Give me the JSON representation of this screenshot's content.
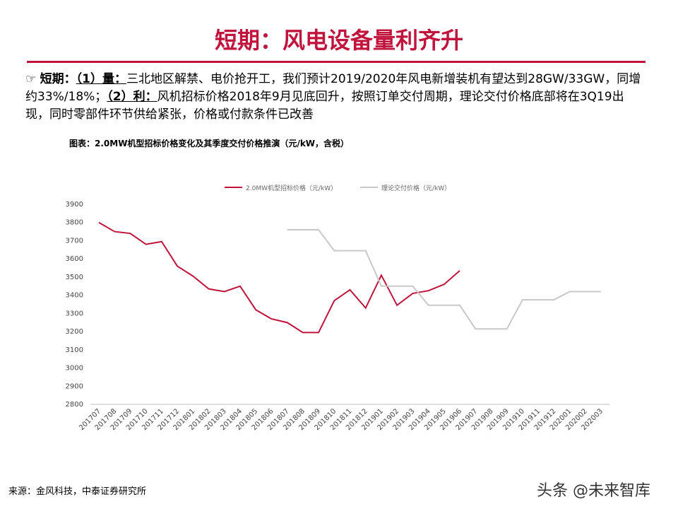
{
  "header": {
    "title": "短期：风电设备量利齐升"
  },
  "bullet": {
    "parts": [
      "短期：",
      "（1）量：",
      "三北地区解禁、电价抢开工，我们预计2019/2020年风电新增装机有望达到28GW/33GW，同增约33%/18%；",
      "（2）利：",
      "风机招标价格2018年9月见底回升，按照订单交付周期，理论交付价格底部将在3Q19出现，同时零部件环节供给紧张，价格或付款条件已改善"
    ]
  },
  "chart_data": {
    "type": "line",
    "title": "图表：2.0MW机型招标价格变化及其季度交付价格推演（元/kW，含税）",
    "categories": [
      "201707",
      "201708",
      "201709",
      "201710",
      "201711",
      "201712",
      "201801",
      "201802",
      "201803",
      "201804",
      "201805",
      "201806",
      "201807",
      "201808",
      "201809",
      "201810",
      "201811",
      "201812",
      "201901",
      "201902",
      "201903",
      "201904",
      "201905",
      "201906",
      "201907",
      "201908",
      "201909",
      "201910",
      "201911",
      "201912",
      "202001",
      "202002",
      "202003"
    ],
    "series": [
      {
        "name": "2.0MW机型招标价格（元/kW）",
        "color": "#c0143c",
        "values": [
          3800,
          3750,
          3740,
          3680,
          3695,
          3560,
          3505,
          3435,
          3420,
          3450,
          3320,
          3270,
          3250,
          3195,
          3195,
          3370,
          3430,
          3330,
          3510,
          3345,
          3410,
          3425,
          3460,
          3535,
          null,
          null,
          null,
          null,
          null,
          null,
          null,
          null,
          null
        ]
      },
      {
        "name": "理论交付价格（元/kW）",
        "color": "#c8c8c8",
        "values": [
          null,
          null,
          null,
          null,
          null,
          null,
          null,
          null,
          null,
          null,
          null,
          null,
          3760,
          3760,
          3760,
          3645,
          3645,
          3645,
          3450,
          3450,
          3450,
          3345,
          3345,
          3345,
          3215,
          3215,
          3215,
          3375,
          3375,
          3375,
          3420,
          3420,
          3420
        ]
      }
    ],
    "ylim": [
      2800,
      3900
    ],
    "yticks": [
      2800,
      2900,
      3000,
      3100,
      3200,
      3300,
      3400,
      3500,
      3600,
      3700,
      3800,
      3900
    ],
    "grid": false
  },
  "source": "来源：金风科技，中泰证券研究所",
  "watermark": "头条 @未来智库"
}
